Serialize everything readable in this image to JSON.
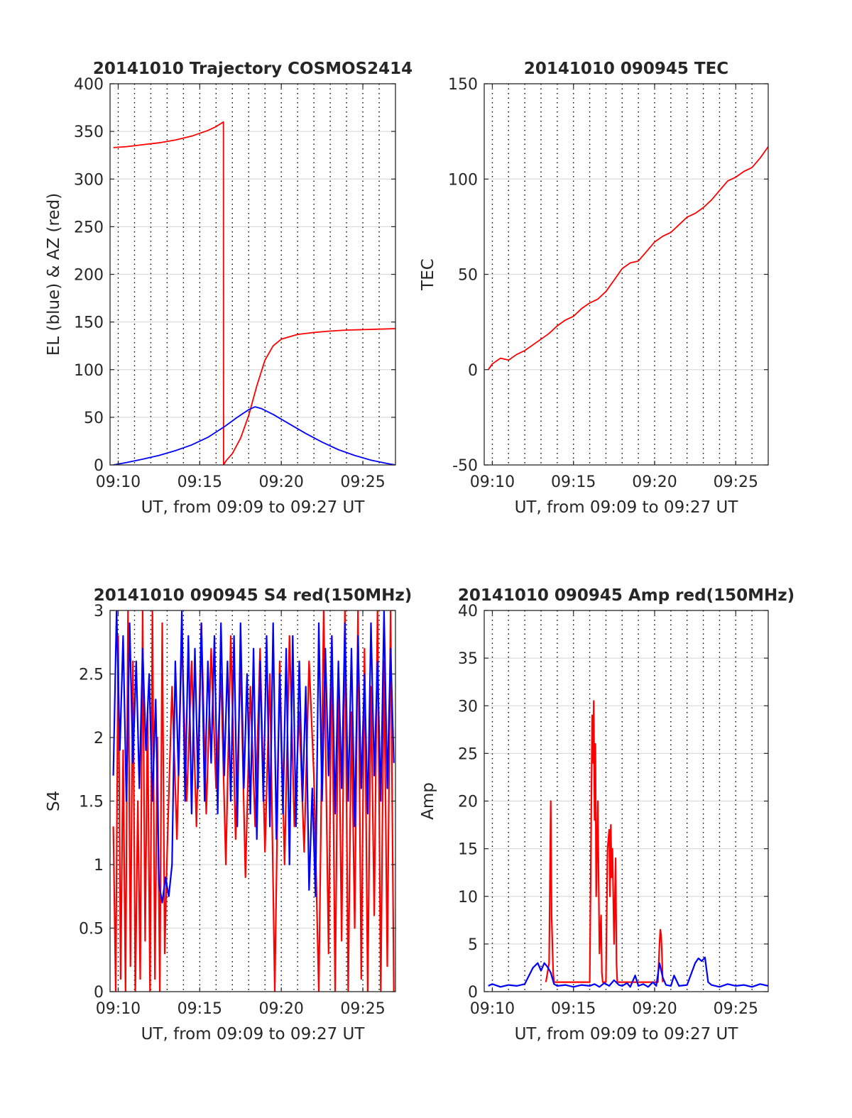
{
  "chart_data": [
    {
      "type": "line",
      "title": "20141010 Trajectory COSMOS2414",
      "xlabel": "UT, from 09:09 to 09:27 UT",
      "ylabel": "EL (blue) & AZ (red)",
      "xlim": [
        9.5,
        27
      ],
      "ylim": [
        0,
        400
      ],
      "xticks": [
        10,
        15,
        20,
        25
      ],
      "xtick_labels": [
        "09:10",
        "09:15",
        "09:20",
        "09:25"
      ],
      "yticks": [
        0,
        50,
        100,
        150,
        200,
        250,
        300,
        350,
        400
      ],
      "ytick_labels": [
        "0",
        "50",
        "100",
        "150",
        "200",
        "250",
        "300",
        "350",
        "400"
      ],
      "minor_x": [
        10,
        11,
        12,
        13,
        14,
        15,
        16,
        17,
        18,
        19,
        20,
        21,
        22,
        23,
        24,
        25,
        26
      ],
      "grid": true,
      "series": [
        {
          "color": "#ff0000",
          "x": [
            9.7,
            10.5,
            11.5,
            12.5,
            13.5,
            14.5,
            15.5,
            16.0,
            16.45,
            16.46,
            16.6,
            17.0,
            17.5,
            18.0,
            18.5,
            19.0,
            19.5,
            20.0,
            21.0,
            22.0,
            23.0,
            24.0,
            25.0,
            26.0,
            27.0
          ],
          "y": [
            333,
            334,
            336,
            338,
            341,
            345,
            351,
            355,
            360,
            0,
            4,
            12,
            28,
            52,
            83,
            110,
            125,
            132,
            137,
            139,
            140.5,
            141.5,
            142,
            142.5,
            143
          ]
        },
        {
          "color": "#0000ff",
          "x": [
            9.7,
            10.5,
            11.5,
            12.5,
            13.5,
            14.5,
            15.5,
            16.5,
            17.3,
            18.0,
            18.4,
            18.8,
            19.5,
            20.5,
            21.5,
            22.5,
            23.5,
            24.5,
            25.5,
            26.5,
            27.0
          ],
          "y": [
            0,
            2.5,
            6,
            10,
            15,
            21,
            29,
            40,
            50,
            58,
            61,
            59,
            53,
            43,
            33,
            24,
            16,
            10,
            5,
            1.5,
            0
          ]
        }
      ]
    },
    {
      "type": "line",
      "title": "20141010 090945 TEC",
      "xlabel": "UT, from 09:09 to 09:27 UT",
      "ylabel": "TEC",
      "xlim": [
        9.5,
        27
      ],
      "ylim": [
        -50,
        150
      ],
      "xticks": [
        10,
        15,
        20,
        25
      ],
      "xtick_labels": [
        "09:10",
        "09:15",
        "09:20",
        "09:25"
      ],
      "yticks": [
        -50,
        0,
        50,
        100,
        150
      ],
      "ytick_labels": [
        "-50",
        "0",
        "50",
        "100",
        "150"
      ],
      "minor_x": [
        10,
        11,
        12,
        13,
        14,
        15,
        16,
        17,
        18,
        19,
        20,
        21,
        22,
        23,
        24,
        25,
        26
      ],
      "grid": true,
      "series": [
        {
          "color": "#ff0000",
          "x": [
            9.75,
            10.0,
            10.5,
            11.0,
            11.5,
            12.0,
            12.5,
            13.0,
            13.5,
            14.0,
            14.5,
            15.0,
            15.5,
            16.0,
            16.5,
            17.0,
            17.5,
            18.0,
            18.5,
            19.0,
            19.5,
            20.0,
            20.5,
            21.0,
            21.5,
            22.0,
            22.5,
            23.0,
            23.5,
            24.0,
            24.5,
            25.0,
            25.5,
            26.0,
            26.5,
            27.0
          ],
          "y": [
            0,
            3,
            6,
            5,
            8,
            10,
            13,
            16,
            19,
            23,
            26,
            28,
            32,
            35,
            37,
            41,
            47,
            53,
            56,
            57,
            62,
            67,
            70,
            72,
            76,
            80,
            82,
            85,
            89,
            94,
            99,
            101,
            104,
            106,
            111,
            117
          ]
        }
      ]
    },
    {
      "type": "line",
      "title": "20141010 090945 S4 red(150MHz)",
      "xlabel": "UT, from 09:09 to 09:27 UT",
      "ylabel": "S4",
      "xlim": [
        9.5,
        27
      ],
      "ylim": [
        0,
        3
      ],
      "xticks": [
        10,
        15,
        20,
        25
      ],
      "xtick_labels": [
        "09:10",
        "09:15",
        "09:20",
        "09:25"
      ],
      "yticks": [
        0,
        0.5,
        1,
        1.5,
        2,
        2.5,
        3
      ],
      "ytick_labels": [
        "0",
        "0.5",
        "1",
        "1.5",
        "2",
        "2.5",
        "3"
      ],
      "minor_x": [
        10,
        11,
        12,
        13,
        14,
        15,
        16,
        17,
        18,
        19,
        20,
        21,
        22,
        23,
        24,
        25,
        26
      ],
      "grid": true,
      "series": [
        {
          "color": "#ff0000",
          "x": [
            9.7,
            9.85,
            10.0,
            10.15,
            10.3,
            10.45,
            10.6,
            10.75,
            10.9,
            11.05,
            11.2,
            11.35,
            11.5,
            11.65,
            11.8,
            11.95,
            12.1,
            12.25,
            12.4,
            12.55,
            12.7,
            12.85,
            13.0,
            13.3,
            13.6,
            13.9,
            14.2,
            14.5,
            14.8,
            15.1,
            15.4,
            15.7,
            16.0,
            16.3,
            16.6,
            16.9,
            17.2,
            17.5,
            17.8,
            18.1,
            18.4,
            18.7,
            19.0,
            19.3,
            19.6,
            19.9,
            20.2,
            20.5,
            20.8,
            21.1,
            21.4,
            21.7,
            22.0,
            22.3,
            22.6,
            22.9,
            23.1,
            23.3,
            23.5,
            23.7,
            23.9,
            24.1,
            24.3,
            24.5,
            24.7,
            24.9,
            25.1,
            25.3,
            25.5,
            25.7,
            25.9,
            26.1,
            26.3,
            26.5,
            26.7,
            26.9
          ],
          "y": [
            1.3,
            0.0,
            2.8,
            0.1,
            1.9,
            0.0,
            3.0,
            0.2,
            2.6,
            0.0,
            1.5,
            0.1,
            3.0,
            0.4,
            2.2,
            0.0,
            3.0,
            0.1,
            2.0,
            0.0,
            2.9,
            0.3,
            1.1,
            2.4,
            1.2,
            2.8,
            1.5,
            2.6,
            1.3,
            2.9,
            1.4,
            2.7,
            1.6,
            2.5,
            1.0,
            2.8,
            1.2,
            2.6,
            0.9,
            2.4,
            1.3,
            2.7,
            1.1,
            2.5,
            0.0,
            2.6,
            1.0,
            2.8,
            1.3,
            2.2,
            1.1,
            2.6,
            1.7,
            0.0,
            3.0,
            0.3,
            2.8,
            0.0,
            2.5,
            0.4,
            3.0,
            0.0,
            2.2,
            0.5,
            3.0,
            0.1,
            2.7,
            0.0,
            2.4,
            0.6,
            3.0,
            0.0,
            2.6,
            0.2,
            3.0,
            0.0
          ]
        },
        {
          "color": "#0000ff",
          "x": [
            9.7,
            9.9,
            10.1,
            10.3,
            10.5,
            10.7,
            10.9,
            11.1,
            11.3,
            11.5,
            11.7,
            11.9,
            12.1,
            12.3,
            12.5,
            12.7,
            12.9,
            13.1,
            13.3,
            13.5,
            13.7,
            13.9,
            14.1,
            14.3,
            14.5,
            14.7,
            14.9,
            15.1,
            15.3,
            15.5,
            15.7,
            15.9,
            16.1,
            16.3,
            16.5,
            16.7,
            16.9,
            17.1,
            17.3,
            17.5,
            17.7,
            17.9,
            18.1,
            18.3,
            18.5,
            18.7,
            18.9,
            19.1,
            19.3,
            19.5,
            19.7,
            19.9,
            20.1,
            20.3,
            20.5,
            20.7,
            20.9,
            21.1,
            21.3,
            21.5,
            21.7,
            21.9,
            22.1,
            22.3,
            22.5,
            22.7,
            22.9,
            23.1,
            23.3,
            23.5,
            23.7,
            23.9,
            24.1,
            24.3,
            24.5,
            24.7,
            24.9,
            25.1,
            25.3,
            25.5,
            25.7,
            25.9,
            26.1,
            26.3,
            26.5,
            26.7,
            26.9
          ],
          "y": [
            1.7,
            3.0,
            1.9,
            2.8,
            1.5,
            2.9,
            1.8,
            2.6,
            1.6,
            2.7,
            1.9,
            2.5,
            1.5,
            2.3,
            0.85,
            0.7,
            0.9,
            0.75,
            1.0,
            2.6,
            1.7,
            3.0,
            1.5,
            2.8,
            1.4,
            2.7,
            1.6,
            2.9,
            1.5,
            2.6,
            1.8,
            2.8,
            1.4,
            2.9,
            1.7,
            2.6,
            1.5,
            2.8,
            1.3,
            2.9,
            1.6,
            2.5,
            1.4,
            2.7,
            1.2,
            2.6,
            1.5,
            2.8,
            1.3,
            2.9,
            1.2,
            2.5,
            1.4,
            2.7,
            1.0,
            2.8,
            1.3,
            2.6,
            1.5,
            2.4,
            0.8,
            1.6,
            0.75,
            2.9,
            1.5,
            2.7,
            1.7,
            2.8,
            1.4,
            2.6,
            1.6,
            2.9,
            1.5,
            2.7,
            1.3,
            2.8,
            1.6,
            2.5,
            1.4,
            2.9,
            1.7,
            2.6,
            1.5,
            3.0,
            1.6,
            2.7,
            1.8
          ]
        }
      ]
    },
    {
      "type": "line",
      "title": "20141010 090945 Amp red(150MHz)",
      "xlabel": "UT, from 09:09 to 09:27 UT",
      "ylabel": "Amp",
      "xlim": [
        9.5,
        27
      ],
      "ylim": [
        0,
        40
      ],
      "xticks": [
        10,
        15,
        20,
        25
      ],
      "xtick_labels": [
        "09:10",
        "09:15",
        "09:20",
        "09:25"
      ],
      "yticks": [
        0,
        5,
        10,
        15,
        20,
        25,
        30,
        35,
        40
      ],
      "ytick_labels": [
        "0",
        "5",
        "10",
        "15",
        "20",
        "25",
        "30",
        "35",
        "40"
      ],
      "minor_x": [
        10,
        11,
        12,
        13,
        14,
        15,
        16,
        17,
        18,
        19,
        20,
        21,
        22,
        23,
        24,
        25,
        26
      ],
      "grid": true,
      "series": [
        {
          "color": "#ff0000",
          "x": [
            13.3,
            13.5,
            13.55,
            13.6,
            13.65,
            13.7,
            13.75,
            13.8,
            16.0,
            16.1,
            16.15,
            16.2,
            16.25,
            16.3,
            16.35,
            16.4,
            16.5,
            16.55,
            16.6,
            16.7,
            16.75,
            16.8,
            17.0,
            17.1,
            17.2,
            17.25,
            17.3,
            17.35,
            17.4,
            17.5,
            17.6,
            17.65,
            17.7,
            20.2,
            20.3,
            20.35,
            20.4,
            20.45,
            20.5
          ],
          "y": [
            1.0,
            3.0,
            12.0,
            20.0,
            8.0,
            5.0,
            2.0,
            1.0,
            1.0,
            20.0,
            29.0,
            24.0,
            30.5,
            18.0,
            26.0,
            10.0,
            20.0,
            12.0,
            4.0,
            8.0,
            2.0,
            1.0,
            1.0,
            15.0,
            17.0,
            10.0,
            17.5,
            12.0,
            15.0,
            5.0,
            14.0,
            3.0,
            1.0,
            1.0,
            5.0,
            6.5,
            6.0,
            4.0,
            1.0
          ]
        },
        {
          "color": "#0000ff",
          "x": [
            9.75,
            10.0,
            10.5,
            11.0,
            11.5,
            12.0,
            12.5,
            12.8,
            13.0,
            13.2,
            13.4,
            13.6,
            13.8,
            14.0,
            14.5,
            15.0,
            15.5,
            16.0,
            16.3,
            16.6,
            16.9,
            17.2,
            17.5,
            17.8,
            18.0,
            18.3,
            18.5,
            18.8,
            19.0,
            19.3,
            19.6,
            19.9,
            20.1,
            20.3,
            20.5,
            20.7,
            21.0,
            21.2,
            21.5,
            22.0,
            22.5,
            22.7,
            22.9,
            23.1,
            23.3,
            23.5,
            24.0,
            24.5,
            25.0,
            25.5,
            26.0,
            26.5,
            27.0
          ],
          "y": [
            0.6,
            0.8,
            0.5,
            0.7,
            0.6,
            0.8,
            2.5,
            3.0,
            2.2,
            3.0,
            2.6,
            2.0,
            0.8,
            0.6,
            0.7,
            0.5,
            0.7,
            0.6,
            0.8,
            0.5,
            0.9,
            0.6,
            1.2,
            0.7,
            0.6,
            0.9,
            0.5,
            1.7,
            0.6,
            0.8,
            0.5,
            1.0,
            0.6,
            3.0,
            1.5,
            0.7,
            0.6,
            1.7,
            0.6,
            0.7,
            3.0,
            3.5,
            3.2,
            3.6,
            1.0,
            0.7,
            0.5,
            0.8,
            0.6,
            0.7,
            0.5,
            0.8,
            0.6
          ]
        }
      ]
    }
  ]
}
